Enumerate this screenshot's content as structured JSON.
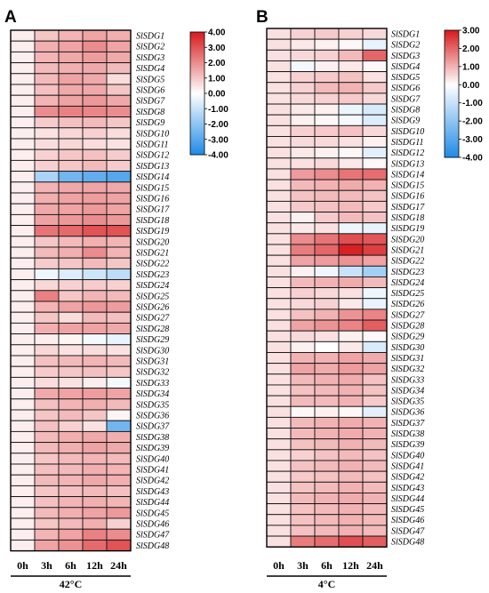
{
  "chart_data": [
    {
      "type": "heatmap",
      "panel": "A",
      "x_categories": [
        "0h",
        "3h",
        "6h",
        "12h",
        "24h"
      ],
      "y_categories": [
        "SlSDG1",
        "SlSDG2",
        "SlSDG3",
        "SlSDG4",
        "SlSDG5",
        "SlSDG6",
        "SlSDG7",
        "SlSDG8",
        "SlSDG9",
        "SlSDG10",
        "SlSDG11",
        "SlSDG12",
        "SlSDG13",
        "SlSDG14",
        "SlSDG15",
        "SlSDG16",
        "SlSDG17",
        "SlSDG18",
        "SlSDG19",
        "SlSDG20",
        "SlSDG21",
        "SlSDG22",
        "SlSDG23",
        "SlSDG24",
        "SlSDG25",
        "SlSDG26",
        "SlSDG27",
        "SlSDG28",
        "SlSDG29",
        "SlSDG30",
        "SlSDG31",
        "SlSDG32",
        "SlSDG33",
        "SlSDG34",
        "SlSDG35",
        "SlSDG36",
        "SlSDG37",
        "SlSDG38",
        "SlSDG39",
        "SlSDG40",
        "SlSDG41",
        "SlSDG42",
        "SlSDG43",
        "SlSDG44",
        "SlSDG45",
        "SlSDG46",
        "SlSDG47",
        "SlSDG48"
      ],
      "values": [
        [
          0.3,
          1.0,
          1.3,
          1.6,
          1.4
        ],
        [
          0.3,
          1.4,
          1.6,
          2.0,
          1.6
        ],
        [
          0.3,
          1.3,
          1.5,
          1.7,
          1.5
        ],
        [
          0.3,
          1.2,
          1.4,
          1.5,
          1.2
        ],
        [
          0.3,
          1.2,
          1.6,
          1.5,
          0.6
        ],
        [
          0.3,
          1.1,
          1.5,
          1.5,
          1.0
        ],
        [
          0.3,
          1.3,
          1.6,
          1.8,
          1.5
        ],
        [
          0.3,
          2.0,
          2.2,
          2.1,
          2.0
        ],
        [
          0.3,
          0.9,
          1.1,
          1.2,
          1.0
        ],
        [
          0.3,
          0.5,
          0.7,
          0.8,
          0.6
        ],
        [
          0.3,
          0.6,
          0.7,
          0.6,
          0.5
        ],
        [
          0.3,
          0.8,
          1.0,
          1.1,
          0.9
        ],
        [
          0.3,
          0.8,
          1.0,
          1.2,
          0.9
        ],
        [
          0.3,
          -1.5,
          -2.5,
          -2.8,
          -3.0
        ],
        [
          0.3,
          1.3,
          1.5,
          1.6,
          1.5
        ],
        [
          0.3,
          1.4,
          1.6,
          1.7,
          1.6
        ],
        [
          0.3,
          1.5,
          1.6,
          1.8,
          1.6
        ],
        [
          0.3,
          1.6,
          1.8,
          2.0,
          1.8
        ],
        [
          0.3,
          2.4,
          2.6,
          3.0,
          3.0
        ],
        [
          0.3,
          1.0,
          1.2,
          1.4,
          1.3
        ],
        [
          0.3,
          1.2,
          1.4,
          2.0,
          1.3
        ],
        [
          0.3,
          0.9,
          1.0,
          1.2,
          1.0
        ],
        [
          0.3,
          -0.3,
          -0.6,
          -0.9,
          -1.2
        ],
        [
          0.3,
          0.7,
          0.8,
          0.9,
          0.8
        ],
        [
          0.3,
          2.2,
          1.0,
          1.3,
          1.2
        ],
        [
          0.3,
          1.3,
          1.6,
          1.8,
          1.7
        ],
        [
          0.3,
          1.0,
          0.6,
          1.2,
          1.1
        ],
        [
          0.3,
          1.4,
          1.6,
          1.6,
          1.5
        ],
        [
          0.3,
          0.3,
          0.2,
          -0.2,
          -0.4
        ],
        [
          0.3,
          0.7,
          0.5,
          0.6,
          0.5
        ],
        [
          0.3,
          1.1,
          1.2,
          1.3,
          1.2
        ],
        [
          0.3,
          0.9,
          1.0,
          1.1,
          1.0
        ],
        [
          0.3,
          0.6,
          0.5,
          0.3,
          -0.2
        ],
        [
          0.3,
          1.5,
          1.6,
          1.7,
          1.6
        ],
        [
          0.3,
          1.1,
          1.3,
          1.4,
          1.2
        ],
        [
          0.3,
          1.0,
          1.2,
          1.0,
          0.2
        ],
        [
          0.3,
          1.1,
          0.8,
          0.5,
          -2.5
        ],
        [
          0.3,
          1.2,
          1.4,
          1.5,
          1.4
        ],
        [
          0.3,
          1.2,
          1.4,
          1.6,
          1.5
        ],
        [
          0.3,
          1.0,
          1.2,
          1.3,
          1.2
        ],
        [
          0.3,
          1.1,
          1.2,
          1.4,
          1.3
        ],
        [
          0.3,
          1.2,
          1.3,
          1.5,
          1.4
        ],
        [
          0.3,
          1.0,
          1.1,
          1.2,
          1.1
        ],
        [
          0.3,
          1.1,
          1.3,
          1.4,
          1.3
        ],
        [
          0.3,
          1.2,
          1.4,
          1.6,
          1.8
        ],
        [
          0.3,
          1.0,
          1.2,
          1.4,
          0.8
        ],
        [
          0.3,
          1.3,
          1.6,
          2.2,
          2.0
        ],
        [
          0.3,
          1.6,
          1.9,
          2.6,
          3.0
        ]
      ],
      "color_scale": {
        "min": -4,
        "max": 4,
        "low": "#1e8ae6",
        "mid": "#ffffff",
        "high": "#d7191c"
      },
      "scale_ticks": [
        "4.00",
        "3.00",
        "2.00",
        "1.00",
        "0.00",
        "-1.00",
        "-2.00",
        "-3.00",
        "-4.00"
      ],
      "xlabel": "42°C"
    },
    {
      "type": "heatmap",
      "panel": "B",
      "x_categories": [
        "0h",
        "3h",
        "6h",
        "12h",
        "24h"
      ],
      "y_categories": [
        "SlSDG1",
        "SlSDG2",
        "SlSDG3",
        "SlSDG4",
        "SlSDG5",
        "SlSDG6",
        "SlSDG7",
        "SlSDG8",
        "SlSDG9",
        "SlSDG10",
        "SlSDG11",
        "SlSDG12",
        "SlSDG13",
        "SlSDG14",
        "SlSDG15",
        "SlSDG16",
        "SlSDG17",
        "SlSDG18",
        "SlSDG19",
        "SlSDG20",
        "SlSDG21",
        "SlSDG22",
        "SlSDG23",
        "SlSDG24",
        "SlSDG25",
        "SlSDG26",
        "SlSDG27",
        "SlSDG28",
        "SlSDG29",
        "SlSDG30",
        "SlSDG31",
        "SlSDG32",
        "SlSDG33",
        "SlSDG34",
        "SlSDG35",
        "SlSDG36",
        "SlSDG37",
        "SlSDG38",
        "SlSDG39",
        "SlSDG40",
        "SlSDG41",
        "SlSDG42",
        "SlSDG43",
        "SlSDG44",
        "SlSDG45",
        "SlSDG46",
        "SlSDG47",
        "SlSDG48"
      ],
      "values": [
        [
          0.4,
          0.6,
          0.7,
          0.6,
          0.5
        ],
        [
          0.4,
          0.3,
          0.2,
          0.1,
          -0.4
        ],
        [
          0.4,
          0.5,
          0.6,
          0.9,
          2.0
        ],
        [
          0.4,
          -0.2,
          0.2,
          0.3,
          0.1
        ],
        [
          0.4,
          0.6,
          0.7,
          0.8,
          0.4
        ],
        [
          0.4,
          0.6,
          0.9,
          1.0,
          0.7
        ],
        [
          0.4,
          0.5,
          0.6,
          0.7,
          0.5
        ],
        [
          0.4,
          0.3,
          0.2,
          -0.3,
          -0.7
        ],
        [
          0.4,
          0.2,
          0.1,
          -0.2,
          -0.6
        ],
        [
          0.4,
          0.6,
          0.7,
          0.8,
          0.5
        ],
        [
          0.4,
          0.5,
          0.5,
          0.4,
          0.2
        ],
        [
          0.4,
          0.3,
          0.2,
          0.1,
          -0.5
        ],
        [
          0.4,
          0.4,
          0.5,
          0.3,
          0.1
        ],
        [
          0.4,
          1.3,
          1.5,
          1.8,
          1.9
        ],
        [
          0.4,
          0.9,
          1.0,
          1.1,
          1.0
        ],
        [
          0.4,
          0.8,
          0.9,
          0.9,
          0.8
        ],
        [
          0.4,
          0.7,
          0.8,
          0.9,
          0.7
        ],
        [
          0.4,
          0.2,
          0.7,
          0.9,
          0.8
        ],
        [
          0.4,
          0.3,
          0.4,
          -0.3,
          -0.4
        ],
        [
          0.4,
          1.5,
          1.8,
          2.3,
          2.2
        ],
        [
          0.4,
          1.7,
          2.0,
          2.9,
          2.5
        ],
        [
          0.4,
          1.2,
          1.3,
          1.4,
          1.2
        ],
        [
          0.4,
          0.2,
          -0.3,
          -1.0,
          -1.6
        ],
        [
          0.4,
          0.9,
          1.0,
          1.1,
          0.9
        ],
        [
          0.4,
          0.6,
          0.5,
          0.4,
          -0.3
        ],
        [
          0.4,
          0.5,
          0.6,
          0.3,
          -0.4
        ],
        [
          0.4,
          0.8,
          1.0,
          1.4,
          1.6
        ],
        [
          0.4,
          1.2,
          1.4,
          1.6,
          2.1
        ],
        [
          0.4,
          0.5,
          0.4,
          0.2,
          0.1
        ],
        [
          0.4,
          0.2,
          0.0,
          0.3,
          -0.7
        ],
        [
          0.4,
          1.0,
          1.0,
          1.2,
          1.1
        ],
        [
          0.4,
          1.2,
          1.1,
          1.3,
          1.2
        ],
        [
          0.4,
          0.9,
          1.0,
          1.1,
          0.8
        ],
        [
          0.4,
          0.8,
          0.9,
          1.0,
          0.8
        ],
        [
          0.4,
          0.9,
          0.9,
          1.0,
          0.7
        ],
        [
          0.4,
          0.1,
          0.2,
          0.1,
          -0.5
        ],
        [
          0.4,
          0.9,
          1.0,
          1.1,
          1.0
        ],
        [
          0.4,
          0.9,
          1.0,
          1.1,
          1.0
        ],
        [
          0.4,
          0.8,
          0.9,
          1.0,
          0.9
        ],
        [
          0.4,
          0.6,
          0.8,
          0.9,
          0.8
        ],
        [
          0.4,
          0.8,
          0.9,
          1.0,
          0.9
        ],
        [
          0.4,
          0.7,
          0.8,
          0.9,
          0.8
        ],
        [
          0.4,
          0.8,
          0.9,
          1.0,
          0.9
        ],
        [
          0.4,
          0.9,
          1.0,
          1.1,
          1.0
        ],
        [
          0.4,
          0.8,
          0.9,
          1.0,
          0.9
        ],
        [
          0.4,
          0.8,
          0.9,
          1.0,
          0.9
        ],
        [
          0.4,
          0.8,
          0.9,
          1.0,
          0.9
        ],
        [
          0.4,
          1.7,
          1.9,
          2.3,
          2.1
        ]
      ],
      "color_scale": {
        "min": -4,
        "max": 3,
        "low": "#1e8ae6",
        "mid": "#ffffff",
        "high": "#d7191c"
      },
      "scale_ticks": [
        "3.00",
        "2.00",
        "1.00",
        "0.00",
        "-1.00",
        "-2.00",
        "-3.00",
        "-4.00"
      ],
      "xlabel": "4°C"
    }
  ]
}
